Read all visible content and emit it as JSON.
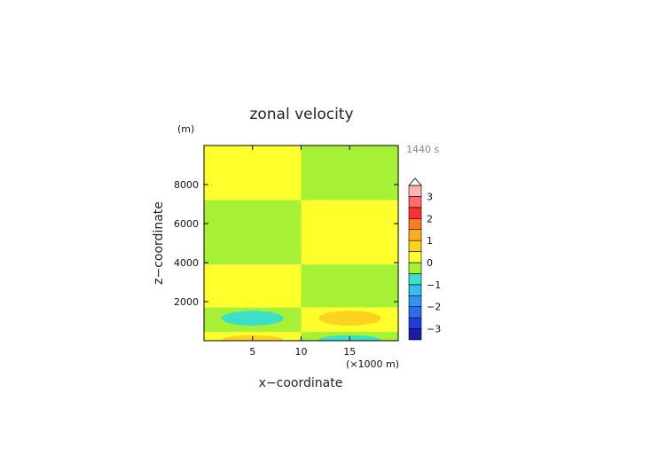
{
  "chart_data": {
    "type": "contour",
    "title": "zonal velocity",
    "xlabel": "x−coordinate",
    "ylabel": "z−coordinate",
    "x_unit_label": "(×1000 m)",
    "y_unit_label": "(m)",
    "time_label": "1440 s",
    "xlim": [
      0,
      20
    ],
    "ylim": [
      0,
      10000
    ],
    "x_ticks": [
      5,
      10,
      15
    ],
    "x_tick_labels": [
      "5",
      "10",
      "15"
    ],
    "y_ticks": [
      2000,
      4000,
      6000,
      8000
    ],
    "y_tick_labels": [
      "2000",
      "4000",
      "6000",
      "8000"
    ],
    "colorbar": {
      "levels": [
        -3.5,
        -3,
        -2.5,
        -2,
        -1.5,
        -1,
        -0.5,
        0,
        0.5,
        1,
        1.5,
        2,
        2.5,
        3,
        3.5
      ],
      "colors": [
        "#1a1aa8",
        "#1f3fd8",
        "#2a6cf0",
        "#2f95f4",
        "#33bdf0",
        "#3ce0c8",
        "#a6f036",
        "#ffff2c",
        "#ffd21f",
        "#fdae1a",
        "#ff7a22",
        "#ff3030",
        "#ff6a6a",
        "#ffb3b3"
      ],
      "tick_values": [
        -3,
        -2,
        -1,
        0,
        1,
        2,
        3
      ],
      "tick_labels": [
        "−3",
        "−2",
        "−1",
        "0",
        "1",
        "2",
        "3"
      ],
      "extend": "max"
    },
    "regions": [
      {
        "x": [
          0,
          10
        ],
        "z": [
          7200,
          10000
        ],
        "value_range": "0 to 0.5"
      },
      {
        "x": [
          0,
          10
        ],
        "z": [
          3900,
          7200
        ],
        "value_range": "-0.5 to 0"
      },
      {
        "x": [
          0,
          10
        ],
        "z": [
          1700,
          3900
        ],
        "value_range": "0 to 0.5"
      },
      {
        "x": [
          0,
          10
        ],
        "z": [
          450,
          1700
        ],
        "value_range": "-0.5 to 0"
      },
      {
        "x": [
          0,
          10
        ],
        "z": [
          0,
          450
        ],
        "value_range": "0 to 0.5"
      },
      {
        "x": [
          10,
          20
        ],
        "z": [
          7200,
          10000
        ],
        "value_range": "-0.5 to 0"
      },
      {
        "x": [
          10,
          20
        ],
        "z": [
          3900,
          7200
        ],
        "value_range": "0 to 0.5"
      },
      {
        "x": [
          10,
          20
        ],
        "z": [
          1700,
          3900
        ],
        "value_range": "-0.5 to 0"
      },
      {
        "x": [
          10,
          20
        ],
        "z": [
          450,
          1700
        ],
        "value_range": "0 to 0.5"
      },
      {
        "x": [
          10,
          20
        ],
        "z": [
          0,
          450
        ],
        "value_range": "-0.5 to 0"
      }
    ],
    "cells": [
      {
        "center": [
          5,
          1150
        ],
        "radius": [
          3.2,
          380
        ],
        "value_range": "-1 to -0.5"
      },
      {
        "center": [
          15,
          1150
        ],
        "radius": [
          3.2,
          380
        ],
        "value_range": "0.5 to 1"
      },
      {
        "center": [
          5,
          30
        ],
        "radius": [
          3.2,
          250
        ],
        "value_range": "0.5 to 1"
      },
      {
        "center": [
          15,
          30
        ],
        "radius": [
          3.2,
          250
        ],
        "value_range": "-1 to -0.5"
      }
    ]
  }
}
